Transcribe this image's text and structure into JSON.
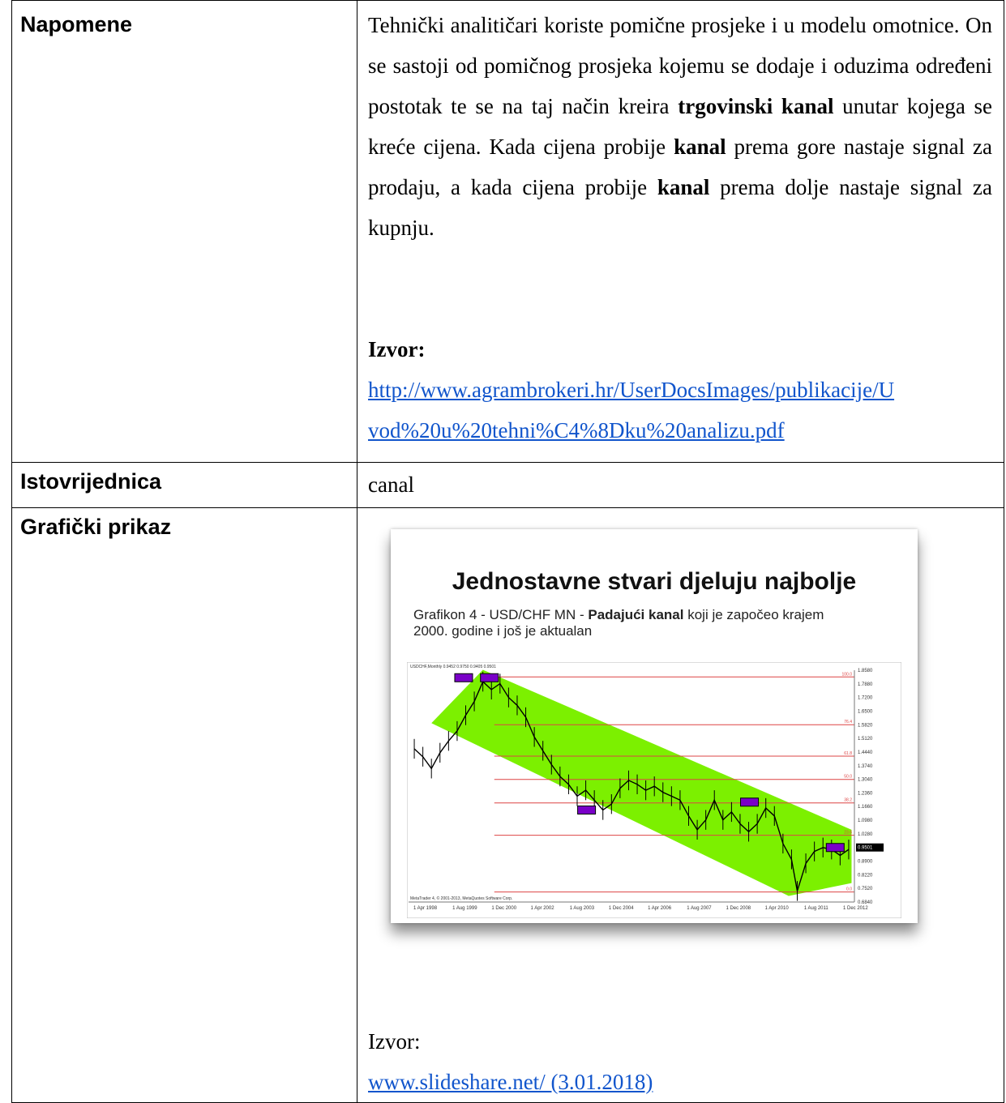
{
  "rows": {
    "napomene": {
      "label": "Napomene",
      "p1": "Tehnički analitičari koriste pomične prosjeke i u modelu omotnice. On se sastoji od pomičnog prosjeka kojemu se dodaje i oduzima određeni postotak te se na taj način kreira ",
      "b1": "trgovinski kanal",
      "p2": " unutar kojega se kreće cijena. Kada cijena probije ",
      "b2": "kanal",
      "p3": " prema gore nastaje signal za prodaju, a kada cijena probije ",
      "b3": "kanal",
      "p4": " prema dolje nastaje signal za kupnju.",
      "source_label": "Izvor:",
      "source_line1": "http://www.agrambrokeri.hr/UserDocsImages/publikacije/U",
      "source_line2": "vod%20u%20tehni%C4%8Dku%20analizu.pdf"
    },
    "istovrijednica": {
      "label": "Istovrijednica",
      "value": "canal"
    },
    "graficki": {
      "label": "Grafički prikaz",
      "source_label": "Izvor:",
      "source_link": "www.slideshare.net/ (3.01.2018)"
    }
  },
  "figure": {
    "title": "Jednostavne stvari djeluju najbolje",
    "subtitle_pre": "Grafikon 4 - USD/CHF MN - ",
    "subtitle_bold": "Padajući kanal",
    "subtitle_post": " koji je započeo krajem",
    "subtitle_line2": "2000. godine i još je aktualan",
    "corner_label": "USDCHF,Monthly  0.9452 0.9750 0.9405 0.9501",
    "footer_label": "MetaTrader 4, © 2001-2013, MetaQuotes Software Corp.",
    "colors": {
      "channel": "#7cf000",
      "fib_line": "#dd4444",
      "price": "#000000",
      "box": "#7a00c8"
    }
  },
  "chart_data": {
    "type": "line",
    "x_ticks": [
      "1 Apr 1998",
      "1 Aug 1999",
      "1 Dec 2000",
      "1 Apr 2002",
      "1 Aug 2003",
      "1 Dec 2004",
      "1 Apr 2006",
      "1 Aug 2007",
      "1 Dec 2008",
      "1 Apr 2010",
      "1 Aug 2011",
      "1 Dec 2012"
    ],
    "y_ticks": [
      "1.8580",
      "1.7880",
      "1.7200",
      "1.6500",
      "1.5820",
      "1.5120",
      "1.4440",
      "1.3740",
      "1.3040",
      "1.2360",
      "1.1660",
      "1.0980",
      "1.0280",
      "0.9501",
      "0.8900",
      "0.8220",
      "0.7520",
      "0.6840"
    ],
    "ylim": [
      0.684,
      1.858
    ],
    "fib_levels": [
      {
        "label": "100.0",
        "value": 1.824
      },
      {
        "label": "76.4",
        "value": 1.582
      },
      {
        "label": "61.8",
        "value": 1.423
      },
      {
        "label": "50.0",
        "value": 1.305
      },
      {
        "label": "38.2",
        "value": 1.186
      },
      {
        "label": "23.6",
        "value": 1.022
      },
      {
        "label": "0.0",
        "value": 0.735
      }
    ],
    "current_price": "0.9501",
    "series": [
      {
        "x": [
          1998.2,
          1998.5,
          1998.8,
          1999.1,
          1999.4,
          1999.7,
          2000.0,
          2000.3,
          2000.6,
          2000.9,
          2001.2,
          2001.5,
          2001.8,
          2002.1,
          2002.4,
          2002.7,
          2003.0,
          2003.3,
          2003.6,
          2003.9,
          2004.2,
          2004.5,
          2004.8,
          2005.1,
          2005.4,
          2005.7,
          2006.0,
          2006.3,
          2006.6,
          2006.9,
          2007.2,
          2007.5,
          2007.8,
          2008.1,
          2008.4,
          2008.7,
          2009.0,
          2009.3,
          2009.6,
          2009.9,
          2010.2,
          2010.5,
          2010.8,
          2011.1,
          2011.4,
          2011.6,
          2011.9,
          2012.2,
          2012.5,
          2012.8,
          2013.1,
          2013.4
        ],
        "y": [
          1.46,
          1.42,
          1.36,
          1.44,
          1.5,
          1.55,
          1.63,
          1.7,
          1.8,
          1.76,
          1.79,
          1.72,
          1.68,
          1.62,
          1.52,
          1.45,
          1.38,
          1.32,
          1.28,
          1.22,
          1.25,
          1.2,
          1.15,
          1.18,
          1.26,
          1.3,
          1.28,
          1.25,
          1.27,
          1.24,
          1.22,
          1.2,
          1.12,
          1.05,
          1.1,
          1.2,
          1.1,
          1.14,
          1.08,
          1.04,
          1.08,
          1.16,
          1.12,
          0.98,
          0.9,
          0.74,
          0.88,
          0.94,
          0.96,
          0.95,
          0.92,
          0.95
        ]
      }
    ]
  }
}
